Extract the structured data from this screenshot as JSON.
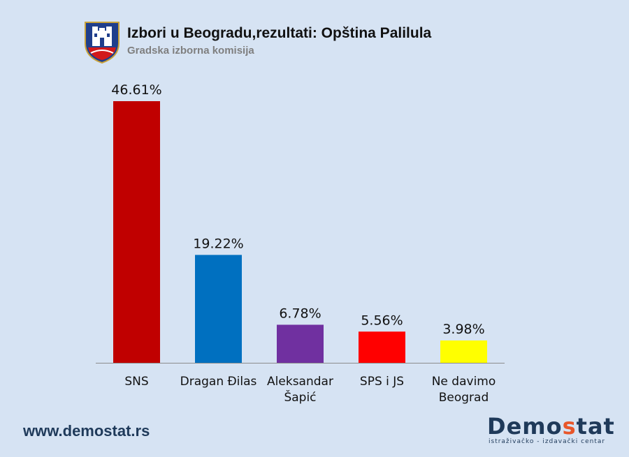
{
  "header": {
    "title": "Izbori u Beogradu,rezultati: Opština Palilula",
    "subtitle": "Gradska izborna komisija"
  },
  "footer": {
    "website": "www.demostat.rs",
    "logo_prefix": "Demo",
    "logo_accent": "s",
    "logo_suffix": "tat",
    "logo_tagline": "istraživačko - izdavački centar"
  },
  "colors": {
    "background": "#d6e3f3",
    "accent": "#e8562a"
  },
  "chart_data": {
    "type": "bar",
    "categories": [
      [
        "SNS"
      ],
      [
        "Dragan Đilas"
      ],
      [
        "Aleksandar",
        "Šapić"
      ],
      [
        "SPS i JS"
      ],
      [
        "Ne davimo",
        "Beograd"
      ]
    ],
    "values": [
      46.61,
      19.22,
      6.78,
      5.56,
      3.98
    ],
    "data_labels": [
      "46.61%",
      "19.22%",
      "6.78%",
      "5.56%",
      "3.98%"
    ],
    "bar_colors": [
      "#c00000",
      "#0070c0",
      "#7030a0",
      "#ff0000",
      "#ffff00"
    ],
    "title": "Izbori u Beogradu,rezultati: Opština Palilula",
    "subtitle": "Gradska izborna komisija",
    "ylim": [
      0,
      50
    ],
    "grid": false,
    "legend": "none"
  }
}
